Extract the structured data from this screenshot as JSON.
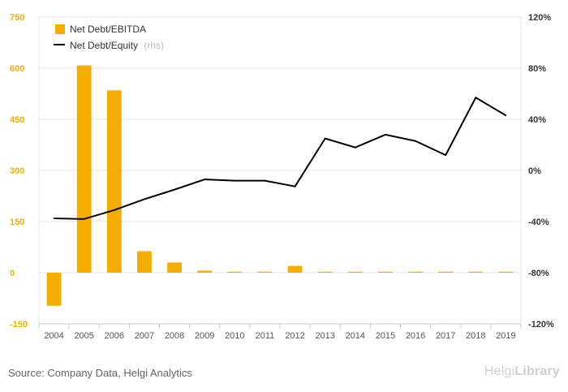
{
  "chart_data": {
    "type": "bar+line",
    "categories": [
      "2004",
      "2005",
      "2006",
      "2007",
      "2008",
      "2009",
      "2010",
      "2011",
      "2012",
      "2013",
      "2014",
      "2015",
      "2016",
      "2017",
      "2018",
      "2019"
    ],
    "series": [
      {
        "name": "Net Debt/EBITDA",
        "type": "bar",
        "axis": "left",
        "color": "#f5ae00",
        "values": [
          -97,
          608,
          535,
          63,
          30,
          6,
          1,
          3,
          20,
          0,
          0,
          1,
          0,
          0,
          1,
          1
        ]
      },
      {
        "name": "Net Debt/Equity",
        "name_suffix": "(rhs)",
        "type": "line",
        "axis": "right",
        "color": "#000000",
        "values": [
          -37.5,
          -38.0,
          -31.0,
          -22.5,
          -15.0,
          -7.0,
          -8.0,
          -8.0,
          -12.5,
          25.0,
          18.0,
          28.0,
          23.0,
          12.0,
          57.0,
          43.0
        ]
      }
    ],
    "y_left": {
      "min": -150,
      "max": 750,
      "ticks": [
        -150,
        0,
        150,
        300,
        450,
        600,
        750
      ],
      "color": "#f5ae00"
    },
    "y_right": {
      "min": -120,
      "max": 120,
      "ticks": [
        -120,
        -80,
        -40,
        0,
        40,
        80,
        120
      ],
      "suffix": "%"
    },
    "grid": true,
    "legend": "top-left"
  },
  "footer": {
    "source": "Source: Company Data, Helgi Analytics",
    "brand_light": "Helgi",
    "brand_bold": "Library"
  }
}
